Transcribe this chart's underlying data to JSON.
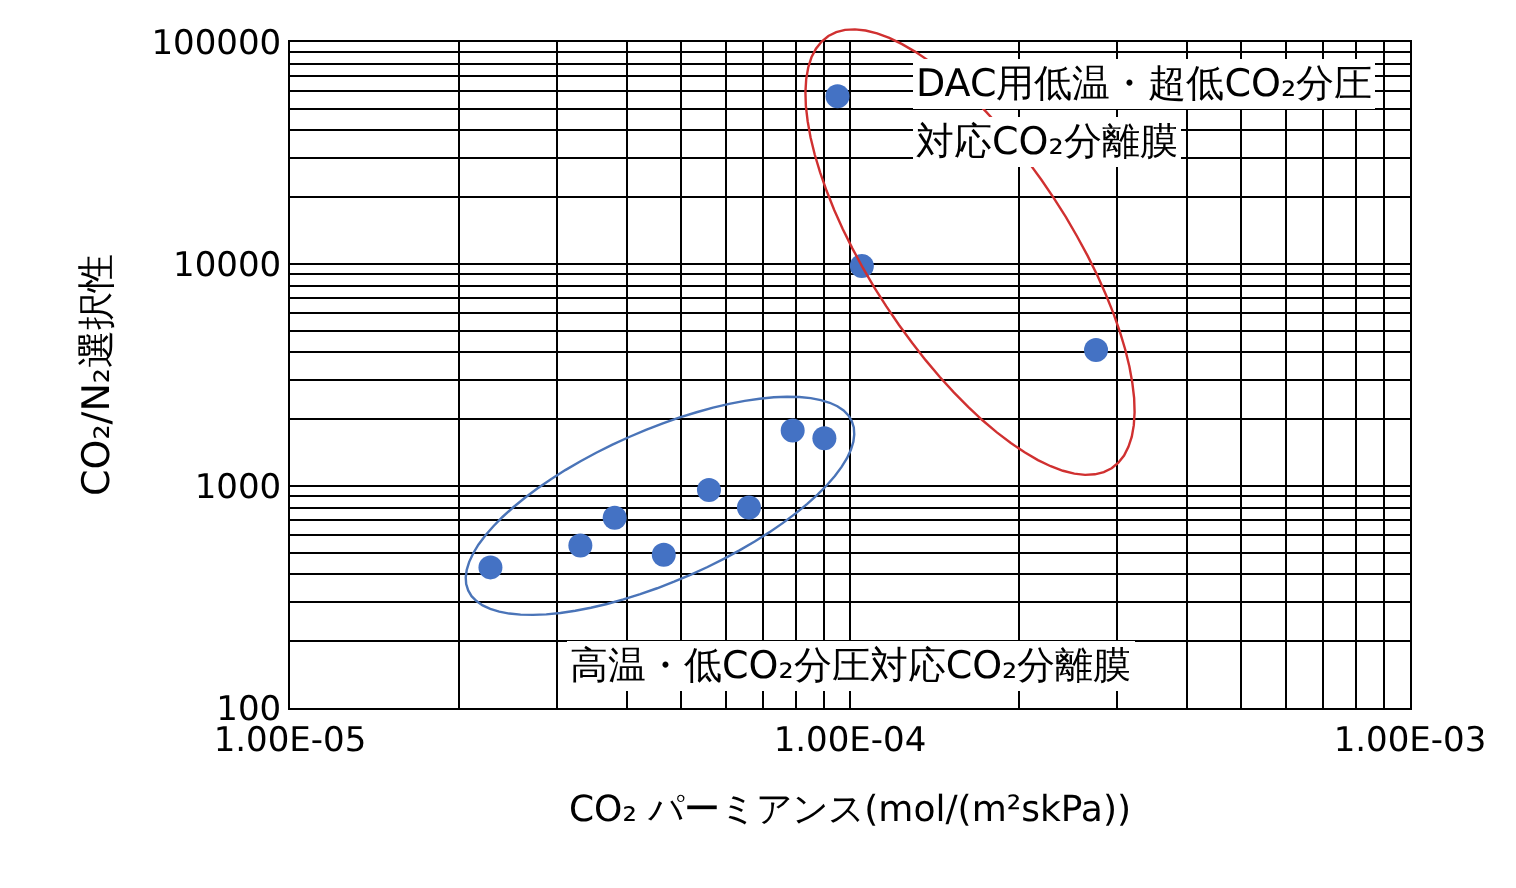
{
  "chart_data": {
    "type": "scatter",
    "xlabel": "CO₂ パーミアンス(mol/(m²skPa))",
    "ylabel": "CO₂/N₂選択性",
    "x": [
      2.28e-05,
      3.3e-05,
      3.8e-05,
      4.65e-05,
      5.6e-05,
      6.6e-05,
      7.9e-05,
      9e-05,
      9.5e-05,
      0.000105,
      0.000275
    ],
    "series": [
      {
        "color": "#4472c4",
        "values": [
          430,
          540,
          720,
          490,
          960,
          800,
          1780,
          1640,
          57000,
          9800,
          4100
        ]
      }
    ],
    "log": "xy",
    "xlim": [
      1e-05,
      0.001
    ],
    "xticks": [
      {
        "value": 1e-05,
        "label": "1.00E-05"
      },
      {
        "value": 0.0001,
        "label": "1.00E-04"
      },
      {
        "value": 0.001,
        "label": "1.00E-03"
      }
    ],
    "ylim": [
      100,
      100000
    ],
    "yticks": [
      100,
      1000,
      10000,
      100000
    ],
    "grid": true,
    "marker": "circle",
    "annotations": [
      "DAC用低温・超低CO₂分圧",
      "対応CO₂分離膜",
      "高温・低CO₂分圧対応CO₂分離膜"
    ]
  }
}
